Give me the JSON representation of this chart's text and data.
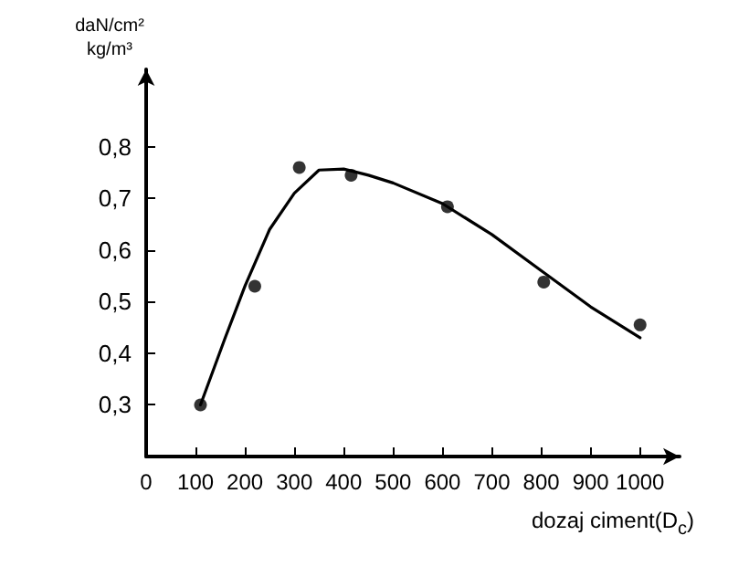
{
  "chart_data": {
    "type": "scatter",
    "xlabel": "dozaj ciment(D$_{c}$)",
    "ylabel": "daN/cm²\nkg/m³",
    "xlim": [
      0,
      1080
    ],
    "xticks": [
      0,
      100,
      200,
      300,
      400,
      500,
      600,
      700,
      800,
      900,
      1000
    ],
    "ylim": [
      0.2,
      0.95
    ],
    "yticks": [
      {
        "value": 0.3,
        "label": "0,3"
      },
      {
        "value": 0.4,
        "label": "0,4"
      },
      {
        "value": 0.5,
        "label": "0,5"
      },
      {
        "value": 0.6,
        "label": "0,6"
      },
      {
        "value": 0.7,
        "label": "0,7"
      },
      {
        "value": 0.8,
        "label": "0,8"
      }
    ],
    "grid": false,
    "series": [
      {
        "type": "scatter",
        "color": "#000000",
        "marker": "circle",
        "x": [
          110,
          220,
          310,
          415,
          610,
          805,
          1000
        ],
        "values": [
          0.3,
          0.53,
          0.76,
          0.745,
          0.684,
          0.538,
          0.455
        ]
      },
      {
        "type": "line",
        "color": "#000000",
        "marker": "none",
        "line_style": "solid",
        "x": [
          110,
          160,
          200,
          250,
          300,
          350,
          400,
          450,
          500,
          600,
          700,
          800,
          900,
          1000
        ],
        "values": [
          0.3,
          0.43,
          0.53,
          0.64,
          0.71,
          0.755,
          0.757,
          0.745,
          0.73,
          0.69,
          0.63,
          0.56,
          0.49,
          0.43
        ]
      }
    ]
  }
}
